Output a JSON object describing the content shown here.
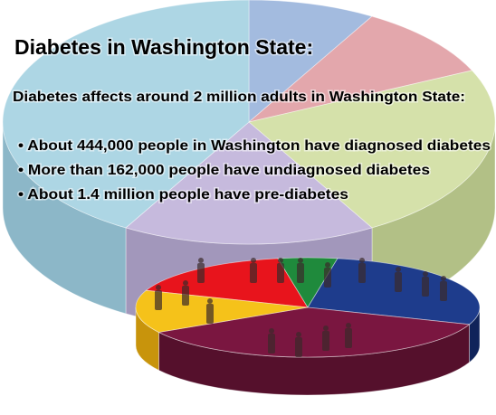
{
  "title": "Diabetes in Washington State:",
  "subtitle": "Diabetes affects around 2 million adults in Washington State:",
  "bullets": [
    "• About 444,000 people in Washington have diagnosed diabetes",
    "• More than 162,000 people have undiagnosed diabetes",
    "• About 1.4 million people have pre-diabetes"
  ]
}
